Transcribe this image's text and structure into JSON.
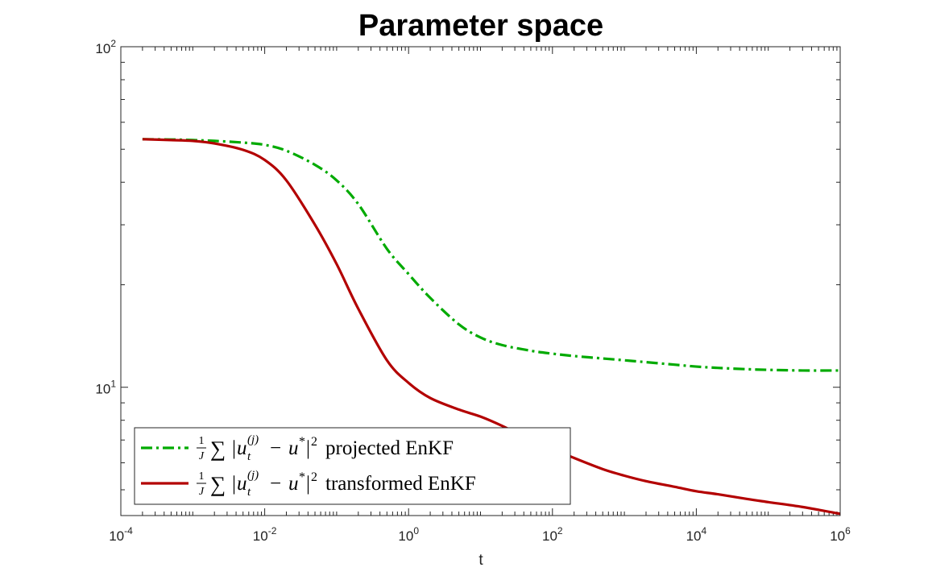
{
  "chart_data": {
    "type": "line",
    "title": "Parameter space",
    "xlabel": "t",
    "ylabel": "",
    "xscale": "log",
    "yscale": "log",
    "xlim": [
      0.0001,
      1000000
    ],
    "ylim": [
      4.2,
      100
    ],
    "x_ticks": [
      {
        "base": "10",
        "exp": "-4",
        "value": 0.0001
      },
      {
        "base": "10",
        "exp": "-2",
        "value": 0.01
      },
      {
        "base": "10",
        "exp": "0",
        "value": 1
      },
      {
        "base": "10",
        "exp": "2",
        "value": 100
      },
      {
        "base": "10",
        "exp": "4",
        "value": 10000
      },
      {
        "base": "10",
        "exp": "6",
        "value": 1000000
      }
    ],
    "y_ticks": [
      {
        "base": "10",
        "exp": "1",
        "value": 10
      },
      {
        "base": "10",
        "exp": "2",
        "value": 100
      }
    ],
    "legend_position": "bottom-left",
    "grid": false,
    "series": [
      {
        "name": "projected EnKF",
        "legend_label": "1/J ∑ |u_t^(j) − u*|² projected EnKF",
        "color": "#00aa00",
        "style": "dash-dot",
        "x": [
          0.0002,
          0.0005,
          0.001,
          0.002,
          0.005,
          0.01,
          0.02,
          0.05,
          0.1,
          0.2,
          0.5,
          1,
          2,
          5,
          10,
          20,
          50,
          100,
          200,
          500,
          1000,
          2000,
          5000,
          10000,
          20000,
          50000,
          100000,
          300000,
          1000000
        ],
        "values": [
          53.5,
          53.4,
          53.2,
          52.9,
          52.3,
          51.5,
          49.5,
          45.0,
          40.5,
          34.5,
          25.5,
          21.5,
          18.3,
          15.3,
          14.0,
          13.3,
          12.8,
          12.55,
          12.35,
          12.15,
          12.0,
          11.85,
          11.65,
          11.5,
          11.4,
          11.3,
          11.25,
          11.2,
          11.2
        ]
      },
      {
        "name": "transformed EnKF",
        "legend_label": "1/J ∑ |u_t^(j) − u*|² transformed EnKF",
        "color": "#b30000",
        "style": "solid",
        "x": [
          0.0002,
          0.0005,
          0.001,
          0.002,
          0.005,
          0.01,
          0.02,
          0.05,
          0.1,
          0.2,
          0.5,
          1,
          2,
          5,
          10,
          20,
          50,
          100,
          200,
          500,
          1000,
          2000,
          5000,
          10000,
          20000,
          50000,
          100000,
          300000,
          1000000
        ],
        "values": [
          53.5,
          53.2,
          52.9,
          52.0,
          49.8,
          46.5,
          40.5,
          30.0,
          23.0,
          17.0,
          12.0,
          10.3,
          9.3,
          8.6,
          8.2,
          7.7,
          7.0,
          6.6,
          6.2,
          5.75,
          5.5,
          5.3,
          5.1,
          4.95,
          4.85,
          4.7,
          4.6,
          4.45,
          4.25
        ]
      }
    ]
  },
  "legend": {
    "items": [
      {
        "frac_num": "1",
        "frac_den": "J",
        "sum_symbol": "∑",
        "bar_open": "|",
        "var": "u",
        "sup": "(j)",
        "sub": "t",
        "minus": "−",
        "target": "u",
        "target_sup": "*",
        "bar_close": "|",
        "power": "2",
        "text": "projected EnKF"
      },
      {
        "frac_num": "1",
        "frac_den": "J",
        "sum_symbol": "∑",
        "bar_open": "|",
        "var": "u",
        "sup": "(j)",
        "sub": "t",
        "minus": "−",
        "target": "u",
        "target_sup": "*",
        "bar_close": "|",
        "power": "2",
        "text": "transformed EnKF"
      }
    ]
  }
}
